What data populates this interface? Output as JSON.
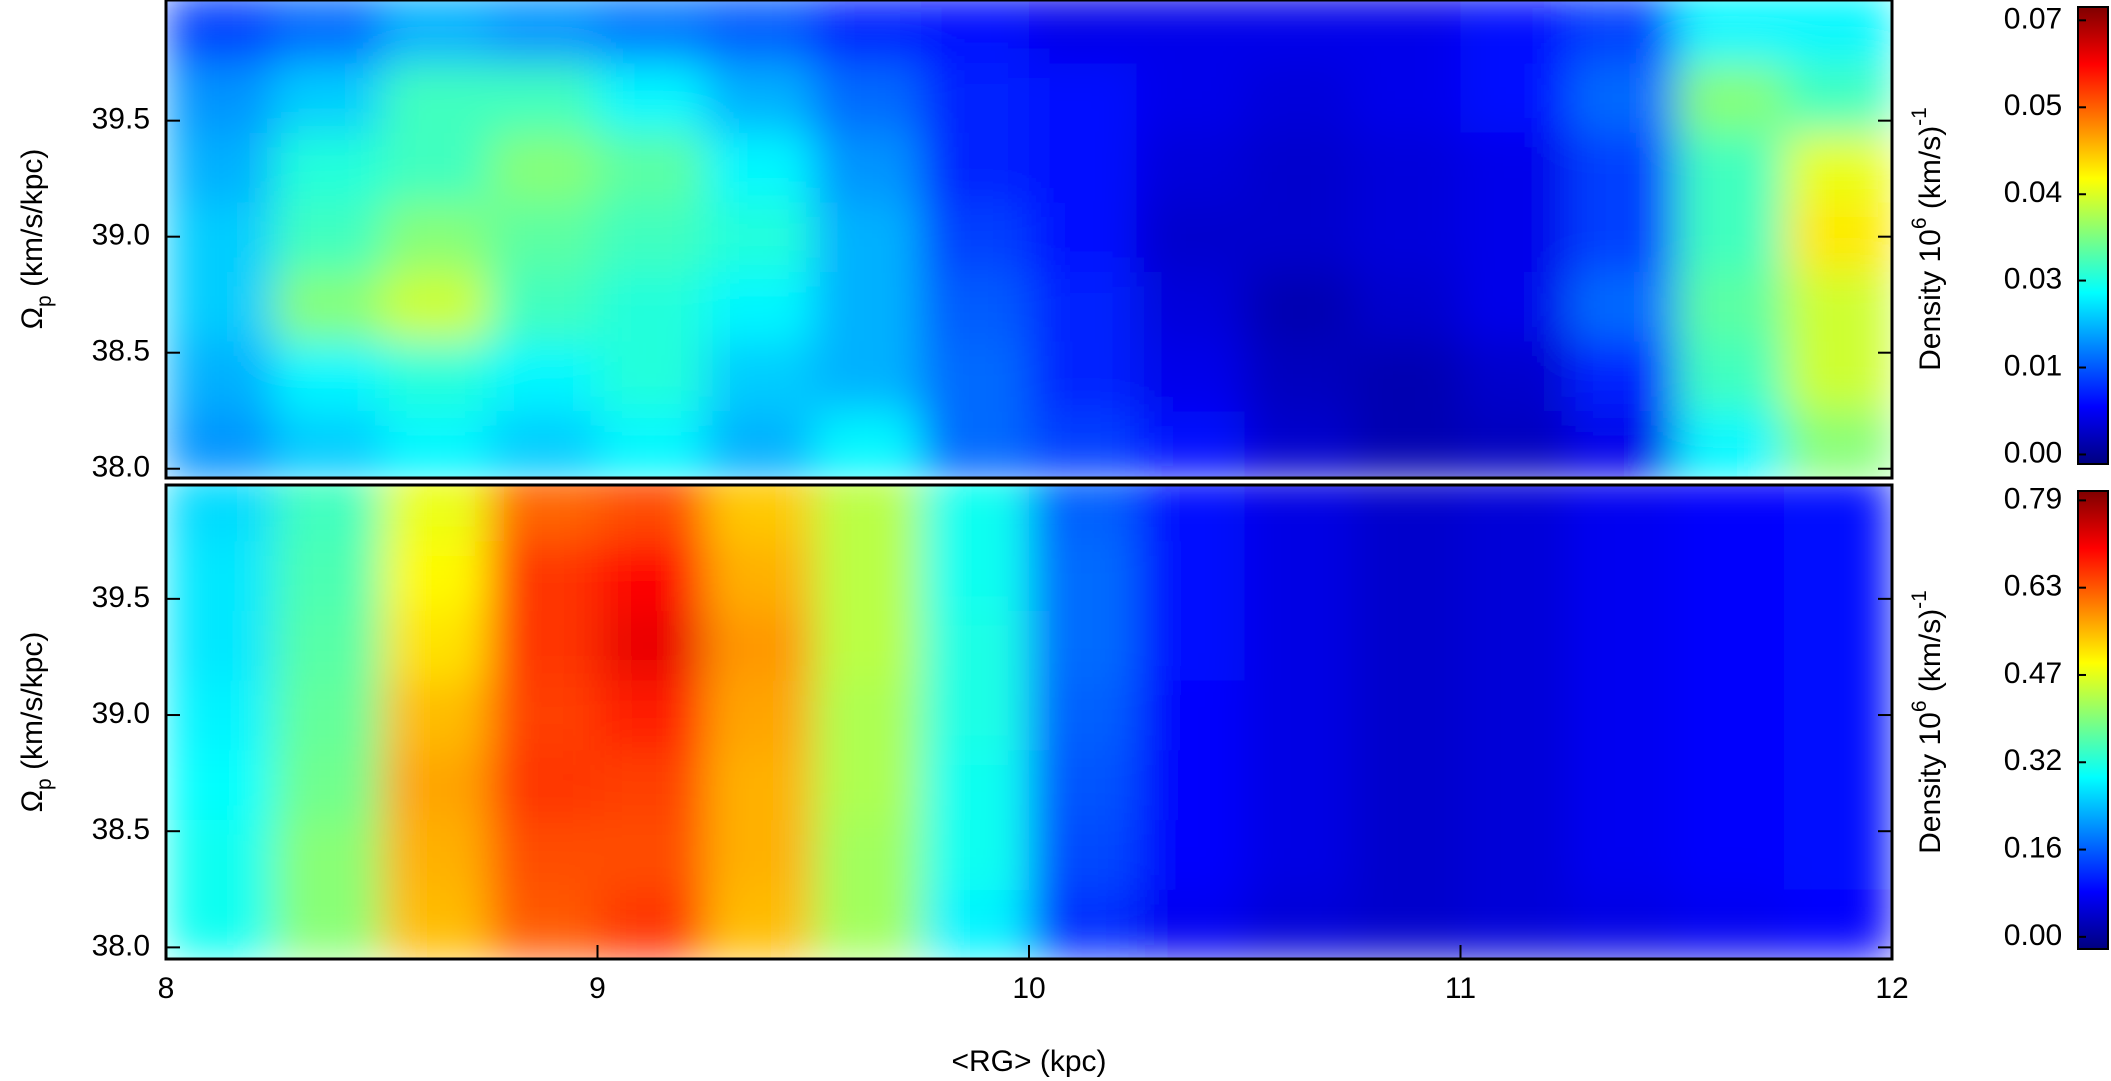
{
  "chart_data": [
    {
      "type": "heatmap",
      "ylabel": [
        {
          "text": "Ω"
        },
        {
          "text": "p",
          "sub": true
        },
        {
          "text": " (km/s/kpc)"
        }
      ],
      "colorbar_label": [
        {
          "text": "Density 10"
        },
        {
          "text": "6",
          "sup": true
        },
        {
          "text": " (km/s)"
        },
        {
          "text": "-1",
          "sup": true
        }
      ],
      "xlim": [
        8,
        12
      ],
      "ylim": [
        37.96,
        40.02
      ],
      "yticks": [
        {
          "value": 38,
          "label": "38.0"
        },
        {
          "value": 38.5,
          "label": "38.5"
        },
        {
          "value": 39,
          "label": "39.0"
        },
        {
          "value": 39.5,
          "label": "39.5"
        }
      ],
      "xbins": [
        8,
        8.25,
        8.5,
        8.75,
        9,
        9.25,
        9.5,
        9.75,
        10,
        10.25,
        10.5,
        10.75,
        11,
        11.25,
        11.5,
        11.75,
        12
      ],
      "ybins": [
        37.95,
        38.25,
        38.55,
        38.85,
        39.15,
        39.45,
        39.75,
        40.05
      ],
      "values": [
        [
          0.018,
          0.022,
          0.025,
          0.022,
          0.025,
          0.02,
          0.025,
          0.015,
          0.012,
          0.008,
          0.004,
          0.002,
          0.003,
          0.006,
          0.025,
          0.035
        ],
        [
          0.02,
          0.025,
          0.028,
          0.025,
          0.028,
          0.022,
          0.02,
          0.015,
          0.01,
          0.006,
          0.003,
          0.002,
          0.004,
          0.01,
          0.03,
          0.04
        ],
        [
          0.022,
          0.035,
          0.04,
          0.03,
          0.028,
          0.025,
          0.02,
          0.014,
          0.01,
          0.005,
          0.002,
          0.004,
          0.006,
          0.015,
          0.032,
          0.04
        ],
        [
          0.022,
          0.03,
          0.035,
          0.032,
          0.03,
          0.028,
          0.02,
          0.012,
          0.008,
          0.004,
          0.004,
          0.005,
          0.006,
          0.012,
          0.03,
          0.045
        ],
        [
          0.02,
          0.028,
          0.03,
          0.035,
          0.032,
          0.025,
          0.018,
          0.01,
          0.008,
          0.005,
          0.004,
          0.005,
          0.006,
          0.012,
          0.03,
          0.042
        ],
        [
          0.018,
          0.022,
          0.03,
          0.03,
          0.025,
          0.02,
          0.015,
          0.01,
          0.008,
          0.006,
          0.005,
          0.006,
          0.008,
          0.015,
          0.035,
          0.03
        ],
        [
          0.012,
          0.015,
          0.02,
          0.018,
          0.016,
          0.014,
          0.01,
          0.008,
          0.006,
          0.006,
          0.006,
          0.006,
          0.008,
          0.012,
          0.025,
          0.025
        ]
      ],
      "zlim": [
        -0.0015,
        0.0705
      ],
      "zticks": [
        {
          "value": 0,
          "label": "0.00"
        },
        {
          "value": 0.0137,
          "label": "0.01"
        },
        {
          "value": 0.0274,
          "label": "0.03"
        },
        {
          "value": 0.041,
          "label": "0.04"
        },
        {
          "value": 0.0547,
          "label": "0.05"
        },
        {
          "value": 0.0684,
          "label": "0.07"
        }
      ],
      "colormap": [
        "#00007f",
        "#0000ff",
        "#007fff",
        "#00ffff",
        "#7fff7f",
        "#ffff00",
        "#ff7f00",
        "#ff0000",
        "#7f0000"
      ]
    },
    {
      "type": "heatmap",
      "ylabel": [
        {
          "text": "Ω"
        },
        {
          "text": "p",
          "sub": true
        },
        {
          "text": " (km/s/kpc)"
        }
      ],
      "xlabel": "<RG> (kpc)",
      "colorbar_label": [
        {
          "text": "Density 10"
        },
        {
          "text": "6",
          "sup": true
        },
        {
          "text": " (km/s)"
        },
        {
          "text": "-1",
          "sup": true
        }
      ],
      "xlim": [
        8,
        12
      ],
      "ylim": [
        37.95,
        39.99
      ],
      "xticks": [
        8,
        9,
        10,
        11,
        12
      ],
      "yticks": [
        {
          "value": 38,
          "label": "38.0"
        },
        {
          "value": 38.5,
          "label": "38.5"
        },
        {
          "value": 39,
          "label": "39.0"
        },
        {
          "value": 39.5,
          "label": "39.5"
        }
      ],
      "xbins": [
        8,
        8.25,
        8.5,
        8.75,
        9,
        9.25,
        9.5,
        9.75,
        10,
        10.25,
        10.5,
        10.75,
        11,
        11.25,
        11.5,
        11.75,
        12
      ],
      "ybins": [
        37.95,
        38.25,
        38.55,
        38.85,
        39.15,
        39.45,
        39.75,
        40.05
      ],
      "values": [
        [
          0.3,
          0.4,
          0.55,
          0.63,
          0.66,
          0.55,
          0.42,
          0.28,
          0.12,
          0.07,
          0.05,
          0.04,
          0.05,
          0.06,
          0.07,
          0.08
        ],
        [
          0.3,
          0.4,
          0.56,
          0.64,
          0.64,
          0.56,
          0.42,
          0.3,
          0.14,
          0.08,
          0.06,
          0.04,
          0.05,
          0.07,
          0.08,
          0.09
        ],
        [
          0.29,
          0.38,
          0.57,
          0.66,
          0.65,
          0.56,
          0.43,
          0.3,
          0.15,
          0.08,
          0.06,
          0.04,
          0.05,
          0.07,
          0.08,
          0.09
        ],
        [
          0.28,
          0.37,
          0.55,
          0.65,
          0.68,
          0.57,
          0.43,
          0.31,
          0.16,
          0.08,
          0.06,
          0.04,
          0.05,
          0.07,
          0.08,
          0.09
        ],
        [
          0.27,
          0.36,
          0.52,
          0.66,
          0.72,
          0.58,
          0.44,
          0.31,
          0.17,
          0.09,
          0.06,
          0.04,
          0.05,
          0.07,
          0.08,
          0.09
        ],
        [
          0.27,
          0.35,
          0.5,
          0.66,
          0.7,
          0.56,
          0.44,
          0.3,
          0.17,
          0.09,
          0.06,
          0.04,
          0.05,
          0.07,
          0.08,
          0.09
        ],
        [
          0.26,
          0.34,
          0.48,
          0.62,
          0.64,
          0.54,
          0.44,
          0.3,
          0.16,
          0.09,
          0.06,
          0.04,
          0.05,
          0.07,
          0.08,
          0.09
        ]
      ],
      "zlim": [
        -0.022,
        0.807
      ],
      "zticks": [
        {
          "value": 0,
          "label": "0.00"
        },
        {
          "value": 0.158,
          "label": "0.16"
        },
        {
          "value": 0.316,
          "label": "0.32"
        },
        {
          "value": 0.474,
          "label": "0.47"
        },
        {
          "value": 0.632,
          "label": "0.63"
        },
        {
          "value": 0.79,
          "label": "0.79"
        }
      ],
      "colormap": [
        "#00007f",
        "#0000ff",
        "#007fff",
        "#00ffff",
        "#7fff7f",
        "#ffff00",
        "#ff7f00",
        "#ff0000",
        "#7f0000"
      ]
    }
  ]
}
